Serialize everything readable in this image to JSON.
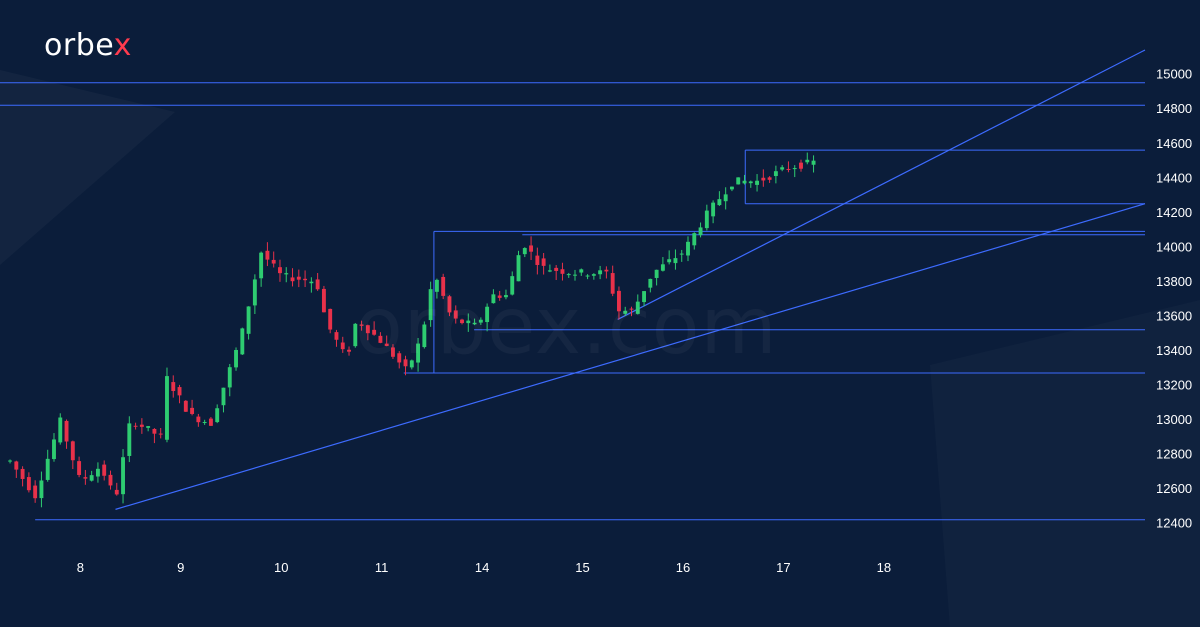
{
  "brand": {
    "logo_text": "orbe",
    "logo_accent": "x",
    "watermark": "orbex.com"
  },
  "colors": {
    "background": "#0b1d3a",
    "up": "#2ecc71",
    "down": "#e8314a",
    "line": "#3d6bff",
    "text": "#ffffff"
  },
  "chart_data": {
    "type": "candlestick",
    "ylim": [
      12320,
      15140
    ],
    "yticks": [
      12400,
      12600,
      12800,
      13000,
      13200,
      13400,
      13600,
      13800,
      14000,
      14200,
      14400,
      14600,
      14800,
      15000
    ],
    "xlim": [
      7.2,
      18.6
    ],
    "xticks": [
      {
        "pos": 8,
        "label": "8"
      },
      {
        "pos": 9,
        "label": "9"
      },
      {
        "pos": 10,
        "label": "10"
      },
      {
        "pos": 11,
        "label": "11"
      },
      {
        "pos": 12,
        "label": "14"
      },
      {
        "pos": 13,
        "label": "15"
      },
      {
        "pos": 14,
        "label": "16"
      },
      {
        "pos": 15,
        "label": "17"
      },
      {
        "pos": 16,
        "label": "18"
      }
    ],
    "anchors": [
      [
        7.3,
        12760
      ],
      [
        7.55,
        12560
      ],
      [
        7.8,
        12990
      ],
      [
        8.0,
        12640
      ],
      [
        8.2,
        12730
      ],
      [
        8.35,
        12540
      ],
      [
        8.5,
        13000
      ],
      [
        8.8,
        12900
      ],
      [
        8.85,
        13250
      ],
      [
        9.1,
        13020
      ],
      [
        9.3,
        12980
      ],
      [
        9.6,
        13480
      ],
      [
        9.8,
        13970
      ],
      [
        10.0,
        13830
      ],
      [
        10.35,
        13800
      ],
      [
        10.45,
        13560
      ],
      [
        10.65,
        13350
      ],
      [
        10.75,
        13580
      ],
      [
        11.0,
        13450
      ],
      [
        11.25,
        13280
      ],
      [
        11.4,
        13480
      ],
      [
        11.52,
        13850
      ],
      [
        11.7,
        13580
      ],
      [
        11.95,
        13540
      ],
      [
        12.1,
        13720
      ],
      [
        12.25,
        13720
      ],
      [
        12.4,
        14030
      ],
      [
        12.6,
        13880
      ],
      [
        12.9,
        13850
      ],
      [
        13.25,
        13850
      ],
      [
        13.35,
        13630
      ],
      [
        13.5,
        13630
      ],
      [
        13.7,
        13850
      ],
      [
        14.0,
        13970
      ],
      [
        14.25,
        14200
      ],
      [
        14.5,
        14380
      ],
      [
        14.75,
        14380
      ],
      [
        15.05,
        14460
      ],
      [
        15.3,
        14490
      ]
    ],
    "horizontal_lines": [
      {
        "y": 14950,
        "x0": 7.2,
        "x1": 18.6
      },
      {
        "y": 14820,
        "x0": 7.2,
        "x1": 18.6
      },
      {
        "y": 14560,
        "x0": 14.62,
        "x1": 18.6
      },
      {
        "y": 14250,
        "x0": 14.62,
        "x1": 18.6
      },
      {
        "y": 14090,
        "x0": 11.52,
        "x1": 18.6
      },
      {
        "y": 14070,
        "x0": 12.4,
        "x1": 18.6
      },
      {
        "y": 13520,
        "x0": 11.92,
        "x1": 18.6
      },
      {
        "y": 13270,
        "x0": 11.22,
        "x1": 18.6
      },
      {
        "y": 12420,
        "x0": 7.55,
        "x1": 18.6
      }
    ],
    "vertical_lines": [
      {
        "x": 11.52,
        "y0": 13270,
        "y1": 14090
      },
      {
        "x": 14.62,
        "y0": 14250,
        "y1": 14560
      }
    ],
    "trend_lines": [
      {
        "x0": 8.35,
        "y0": 12480,
        "x1": 18.6,
        "y1": 14250
      },
      {
        "x0": 13.35,
        "y0": 13580,
        "x1": 18.6,
        "y1": 15140
      }
    ]
  }
}
